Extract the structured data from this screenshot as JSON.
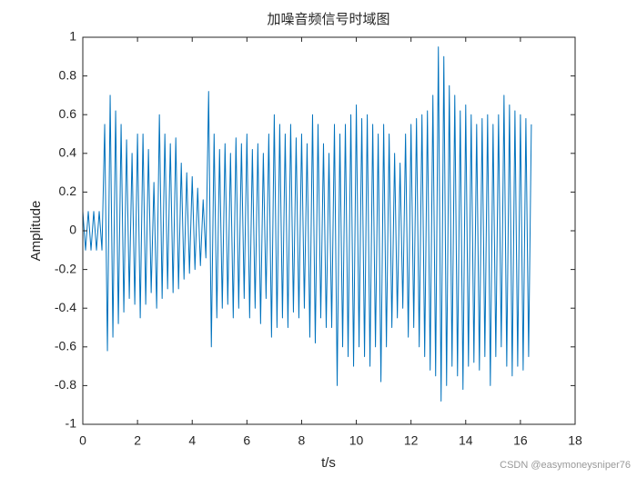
{
  "chart_data": {
    "type": "line",
    "title": "加噪音频信号时域图",
    "xlabel": "t/s",
    "ylabel": "Amplitude",
    "watermark": "CSDN @easymoneysniper76",
    "xlim": [
      0,
      18
    ],
    "ylim": [
      -1,
      1
    ],
    "xticks": [
      0,
      2,
      4,
      6,
      8,
      10,
      12,
      14,
      16,
      18
    ],
    "yticks": [
      -1,
      -0.8,
      -0.6,
      -0.4,
      -0.2,
      0,
      0.2,
      0.4,
      0.6,
      0.8,
      1
    ],
    "grid": false,
    "box": true,
    "color": "#0072bd",
    "x": [
      0,
      0.1,
      0.2,
      0.3,
      0.4,
      0.5,
      0.6,
      0.7,
      0.8,
      0.9,
      1,
      1.1,
      1.2,
      1.3,
      1.4,
      1.5,
      1.6,
      1.7,
      1.8,
      1.9,
      2,
      2.1,
      2.2,
      2.3,
      2.4,
      2.5,
      2.6,
      2.7,
      2.8,
      2.9,
      3,
      3.1,
      3.2,
      3.3,
      3.4,
      3.5,
      3.6,
      3.7,
      3.8,
      3.9,
      4,
      4.1,
      4.2,
      4.3,
      4.4,
      4.5,
      4.6,
      4.7,
      4.8,
      4.9,
      5,
      5.1,
      5.2,
      5.3,
      5.4,
      5.5,
      5.6,
      5.7,
      5.8,
      5.9,
      6,
      6.1,
      6.2,
      6.3,
      6.4,
      6.5,
      6.6,
      6.7,
      6.8,
      6.9,
      7,
      7.1,
      7.2,
      7.3,
      7.4,
      7.5,
      7.6,
      7.7,
      7.8,
      7.9,
      8,
      8.1,
      8.2,
      8.3,
      8.4,
      8.5,
      8.6,
      8.7,
      8.8,
      8.9,
      9,
      9.1,
      9.2,
      9.3,
      9.4,
      9.5,
      9.6,
      9.7,
      9.8,
      9.9,
      10,
      10.1,
      10.2,
      10.3,
      10.4,
      10.5,
      10.6,
      10.7,
      10.8,
      10.9,
      11,
      11.1,
      11.2,
      11.3,
      11.4,
      11.5,
      11.6,
      11.7,
      11.8,
      11.9,
      12,
      12.1,
      12.2,
      12.3,
      12.4,
      12.5,
      12.6,
      12.7,
      12.8,
      12.9,
      13,
      13.1,
      13.2,
      13.3,
      13.4,
      13.5,
      13.6,
      13.7,
      13.8,
      13.9,
      14,
      14.1,
      14.2,
      14.3,
      14.4,
      14.5,
      14.6,
      14.7,
      14.8,
      14.9,
      15,
      15.1,
      15.2,
      15.3,
      15.4,
      15.5,
      15.6,
      15.7,
      15.8,
      15.9,
      16,
      16.1,
      16.2,
      16.3,
      16.4
    ],
    "values": [
      0.1,
      -0.1,
      0.1,
      -0.1,
      0.1,
      -0.1,
      0.1,
      -0.1,
      0.55,
      -0.62,
      0.7,
      -0.55,
      0.62,
      -0.48,
      0.55,
      -0.42,
      0.47,
      -0.35,
      0.4,
      -0.38,
      0.5,
      -0.45,
      0.5,
      -0.38,
      0.42,
      -0.32,
      0.25,
      -0.4,
      0.6,
      -0.35,
      0.5,
      -0.3,
      0.45,
      -0.32,
      0.48,
      -0.3,
      0.35,
      -0.25,
      0.3,
      -0.22,
      0.28,
      -0.2,
      0.22,
      -0.18,
      0.16,
      -0.14,
      0.72,
      -0.6,
      0.5,
      -0.45,
      0.42,
      -0.4,
      0.45,
      -0.38,
      0.4,
      -0.45,
      0.48,
      -0.4,
      0.45,
      -0.35,
      0.5,
      -0.45,
      0.42,
      -0.4,
      0.45,
      -0.48,
      0.4,
      -0.35,
      0.5,
      -0.55,
      0.6,
      -0.5,
      0.55,
      -0.45,
      0.5,
      -0.5,
      0.55,
      -0.42,
      0.48,
      -0.45,
      0.5,
      -0.4,
      0.45,
      -0.55,
      0.6,
      -0.58,
      0.55,
      -0.45,
      0.45,
      -0.5,
      0.4,
      -0.5,
      0.55,
      -0.8,
      0.5,
      -0.6,
      0.55,
      -0.65,
      0.6,
      -0.7,
      0.65,
      -0.6,
      0.58,
      -0.65,
      0.6,
      -0.7,
      0.55,
      -0.6,
      0.5,
      -0.78,
      0.55,
      -0.6,
      0.5,
      -0.5,
      0.4,
      -0.45,
      0.35,
      -0.4,
      0.5,
      -0.55,
      0.55,
      -0.5,
      0.58,
      -0.6,
      0.6,
      -0.65,
      0.62,
      -0.72,
      0.7,
      -0.75,
      0.95,
      -0.88,
      0.9,
      -0.8,
      0.75,
      -0.7,
      0.7,
      -0.75,
      0.62,
      -0.82,
      0.65,
      -0.7,
      0.6,
      -0.68,
      0.55,
      -0.72,
      0.58,
      -0.65,
      0.6,
      -0.8,
      0.55,
      -0.65,
      0.6,
      -0.6,
      0.7,
      -0.7,
      0.65,
      -0.75,
      0.62,
      -0.7,
      0.6,
      -0.72,
      0.58,
      -0.65,
      0.55
    ]
  }
}
